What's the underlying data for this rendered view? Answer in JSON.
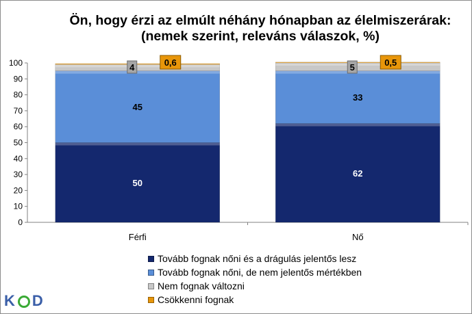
{
  "title_line1": "Ön, hogy érzi az elmúlt néhány hónapban az élelmiszerárak:",
  "title_line2": "(nemek szerint, releváns válaszok, %)",
  "logo": {
    "k": "K",
    "d": "D"
  },
  "chart_data": {
    "type": "bar",
    "stacked": true,
    "categories": [
      "Férfi",
      "Nő"
    ],
    "ylim": [
      0,
      100
    ],
    "yticks": [
      0,
      10,
      20,
      30,
      40,
      50,
      60,
      70,
      80,
      90,
      100
    ],
    "grid": false,
    "legend_position": "bottom",
    "series": [
      {
        "name": "Tovább fognak nőni és a drágulás jelentős lesz",
        "values": [
          50,
          62
        ],
        "labels": [
          "50",
          "62"
        ],
        "color": "#14286e",
        "label_color": "#ffffff"
      },
      {
        "name": "Tovább fognak nőni, de nem jelentős mértékben",
        "values": [
          45,
          33
        ],
        "labels": [
          "45",
          "33"
        ],
        "color": "#5a8ed8",
        "label_color": "#000000"
      },
      {
        "name": "Nem fognak változni",
        "values": [
          4,
          5
        ],
        "labels": [
          "4",
          "5"
        ],
        "color": "#c8c8c8",
        "label_color": "#000000"
      },
      {
        "name": "Csökkenni fognak",
        "values": [
          0.6,
          0.5
        ],
        "labels": [
          "0,6",
          "0,5"
        ],
        "color": "#e8960a",
        "label_color": "#000000"
      }
    ]
  }
}
